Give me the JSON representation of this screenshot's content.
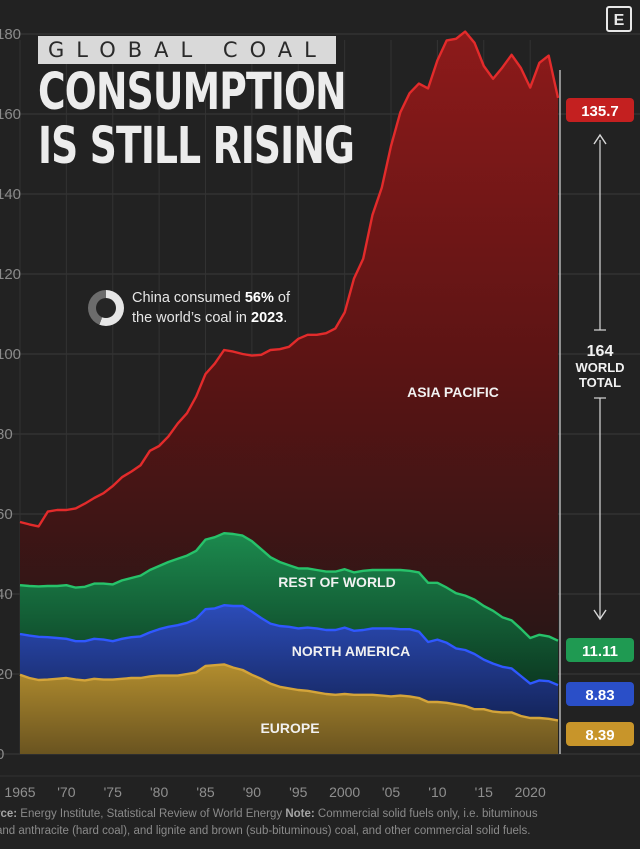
{
  "title": {
    "kicker": "GLOBAL COAL",
    "line1": "CONSUMPTION",
    "line2": "IS STILL RISING"
  },
  "logo": "E",
  "callout": {
    "text_before": "China consumed ",
    "percent": "56%",
    "text_middle": " of",
    "text_line2_before": "the world’s coal in ",
    "year": "2023",
    "text_end": "."
  },
  "footer": {
    "line1_label": "rce:",
    "line1_source": " Energy Institute, Statistical Review of World Energy ",
    "line1_note_label": "Note:",
    "line1_note": " Commercial solid fuels only, i.e. bituminous",
    "line2": "and anthracite (hard coal), and lignite and brown (sub-bituminous) coal, and other commercial solid fuels."
  },
  "total": {
    "value": "164",
    "line1": "WORLD",
    "line2": "TOTAL"
  },
  "chart_data": {
    "type": "area",
    "stacked": true,
    "title": "GLOBAL COAL CONSUMPTION IS STILL RISING",
    "x": [
      1965,
      1966,
      1967,
      1968,
      1969,
      1970,
      1971,
      1972,
      1973,
      1974,
      1975,
      1976,
      1977,
      1978,
      1979,
      1980,
      1981,
      1982,
      1983,
      1984,
      1985,
      1986,
      1987,
      1988,
      1989,
      1990,
      1991,
      1992,
      1993,
      1994,
      1995,
      1996,
      1997,
      1998,
      1999,
      2000,
      2001,
      2002,
      2003,
      2004,
      2005,
      2006,
      2007,
      2008,
      2009,
      2010,
      2011,
      2012,
      2013,
      2014,
      2015,
      2016,
      2017,
      2018,
      2019,
      2020,
      2021,
      2022,
      2023
    ],
    "x_tick_labels": [
      "1965",
      "'70",
      "'75",
      "'80",
      "'85",
      "'90",
      "'95",
      "2000",
      "'05",
      "'10",
      "'15",
      "2020"
    ],
    "y_tick_labels": [
      "0",
      "20",
      "40",
      "60",
      "80",
      "100",
      "120",
      "140",
      "160",
      "180"
    ],
    "ylim": [
      0,
      180
    ],
    "series": [
      {
        "name": "EUROPE",
        "color": "#c79a2c",
        "values": [
          19.8,
          19.0,
          18.5,
          18.6,
          18.8,
          19.0,
          18.6,
          18.4,
          18.8,
          18.6,
          18.6,
          18.8,
          19.0,
          19.0,
          19.4,
          19.6,
          19.6,
          19.6,
          20.0,
          20.4,
          22.0,
          22.2,
          22.4,
          21.6,
          21.0,
          19.8,
          18.8,
          17.6,
          16.8,
          16.4,
          16.0,
          15.8,
          15.4,
          15.0,
          14.8,
          15.0,
          14.8,
          14.8,
          14.8,
          14.6,
          14.4,
          14.6,
          14.4,
          14.0,
          13.0,
          13.0,
          12.8,
          12.4,
          12.0,
          11.2,
          11.2,
          10.6,
          10.4,
          10.4,
          9.5,
          9.0,
          9.0,
          8.8,
          8.39
        ]
      },
      {
        "name": "NORTH AMERICA",
        "color": "#2f4fb8",
        "values": [
          10.2,
          10.6,
          10.8,
          10.6,
          10.2,
          9.8,
          9.6,
          9.8,
          10.0,
          10.0,
          9.6,
          10.0,
          10.2,
          10.4,
          11.0,
          11.6,
          12.2,
          12.6,
          12.8,
          13.4,
          14.2,
          14.2,
          14.8,
          15.4,
          16.0,
          15.8,
          15.2,
          15.0,
          15.2,
          15.4,
          15.4,
          15.8,
          16.0,
          16.0,
          16.2,
          16.6,
          16.0,
          16.2,
          16.6,
          16.8,
          17.0,
          16.6,
          16.8,
          16.6,
          15.0,
          15.6,
          15.0,
          14.0,
          14.0,
          13.8,
          12.4,
          12.0,
          11.4,
          11.0,
          10.0,
          8.6,
          9.4,
          9.4,
          8.83
        ]
      },
      {
        "name": "REST OF WORLD",
        "color": "#1e8a52",
        "values": [
          12.2,
          12.4,
          12.6,
          12.8,
          13.0,
          13.4,
          13.4,
          13.6,
          13.8,
          14.0,
          14.2,
          14.6,
          14.8,
          15.2,
          15.6,
          15.8,
          16.2,
          16.6,
          16.8,
          17.0,
          17.4,
          17.8,
          18.0,
          18.0,
          17.6,
          17.6,
          17.2,
          16.6,
          16.0,
          15.4,
          15.0,
          14.8,
          14.6,
          14.6,
          14.6,
          14.6,
          14.6,
          14.8,
          14.6,
          14.6,
          14.6,
          14.8,
          14.6,
          14.8,
          14.8,
          14.2,
          13.8,
          13.8,
          13.6,
          13.6,
          13.4,
          13.2,
          12.4,
          12.0,
          11.8,
          11.4,
          11.4,
          11.2,
          11.11
        ]
      },
      {
        "name": "ASIA PACIFIC",
        "color": "#a51c1c",
        "values": [
          15.8,
          15.4,
          15.0,
          18.6,
          19.0,
          18.8,
          19.8,
          20.8,
          21.4,
          22.6,
          24.6,
          25.8,
          26.6,
          27.6,
          29.8,
          30.0,
          31.4,
          33.8,
          35.6,
          38.6,
          41.4,
          43.4,
          45.8,
          45.6,
          45.4,
          46.4,
          48.6,
          51.8,
          53.2,
          54.6,
          57.4,
          58.4,
          58.8,
          59.6,
          60.8,
          64.2,
          73.4,
          78.0,
          88.8,
          95.6,
          106.0,
          114.4,
          119.4,
          122.2,
          123.6,
          130.6,
          136.8,
          138.6,
          141.0,
          139.2,
          135.0,
          133.0,
          137.4,
          141.4,
          140.2,
          137.6,
          143.0,
          145.2,
          135.7
        ]
      }
    ],
    "total_2023": 164,
    "end_labels": [
      "135.7",
      "11.11",
      "8.83",
      "8.39"
    ],
    "grid": true,
    "legend": "inline"
  }
}
